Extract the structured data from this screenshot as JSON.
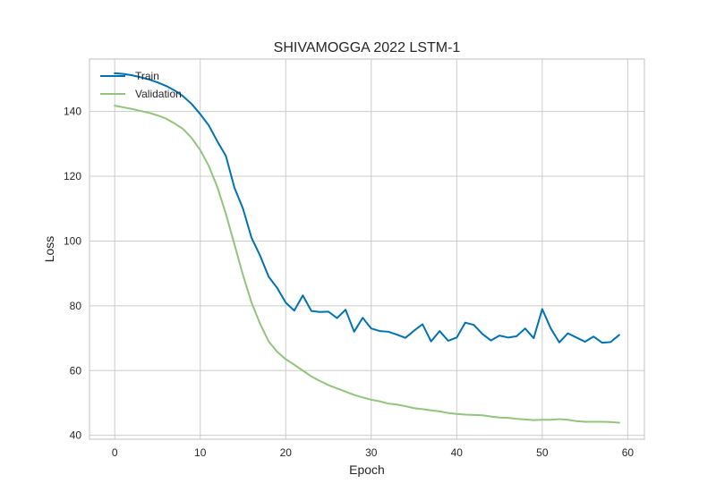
{
  "chart_data": {
    "type": "line",
    "title": "SHIVAMOGGA 2022 LSTM-1",
    "xlabel": "Epoch",
    "ylabel": "Loss",
    "xlim": [
      -2.95,
      61.95
    ],
    "ylim": [
      38.8,
      156.2
    ],
    "xticks": [
      0,
      10,
      20,
      30,
      40,
      50,
      60
    ],
    "yticks": [
      40,
      60,
      80,
      100,
      120,
      140
    ],
    "grid": true,
    "legend_position": "top-left",
    "series": [
      {
        "name": "Train",
        "color": "#0072b2",
        "x": [
          0,
          1,
          2,
          3,
          4,
          5,
          6,
          7,
          8,
          9,
          10,
          11,
          12,
          13,
          14,
          15,
          16,
          17,
          18,
          19,
          20,
          21,
          22,
          23,
          24,
          25,
          26,
          27,
          28,
          29,
          30,
          31,
          32,
          33,
          34,
          35,
          36,
          37,
          38,
          39,
          40,
          41,
          42,
          43,
          44,
          45,
          46,
          47,
          48,
          49,
          50,
          51,
          52,
          53,
          54,
          55,
          56,
          57,
          58,
          59
        ],
        "values": [
          151.8,
          151.6,
          151.2,
          150.6,
          149.9,
          149.0,
          147.9,
          146.5,
          144.7,
          142.3,
          139.2,
          135.7,
          130.8,
          126.3,
          116.5,
          110,
          101,
          95.5,
          89,
          85.5,
          81,
          78.5,
          83.2,
          78.4,
          78.1,
          78.2,
          76.2,
          78.8,
          72,
          76.3,
          73,
          72.2,
          72,
          71.1,
          70.1,
          72.3,
          74.3,
          69,
          72.2,
          69.2,
          70.2,
          74.8,
          74.1,
          71.3,
          69.3,
          70.8,
          70.2,
          70.6,
          73,
          70,
          79,
          73,
          68.7,
          71.5,
          70.2,
          68.9,
          70.5,
          68.6,
          68.8,
          71
        ]
      },
      {
        "name": "Validation",
        "color": "#93c47d",
        "x": [
          0,
          1,
          2,
          3,
          4,
          5,
          6,
          7,
          8,
          9,
          10,
          11,
          12,
          13,
          14,
          15,
          16,
          17,
          18,
          19,
          20,
          21,
          22,
          23,
          24,
          25,
          26,
          27,
          28,
          29,
          30,
          31,
          32,
          33,
          34,
          35,
          36,
          37,
          38,
          39,
          40,
          41,
          42,
          43,
          44,
          45,
          46,
          47,
          48,
          49,
          50,
          51,
          52,
          53,
          54,
          55,
          56,
          57,
          58,
          59
        ],
        "values": [
          141.8,
          141.3,
          140.8,
          140.2,
          139.6,
          138.8,
          137.8,
          136.3,
          134.6,
          131.8,
          128.1,
          123.2,
          116.7,
          108.4,
          99,
          89.5,
          81,
          74.5,
          69,
          65.8,
          63.5,
          61.8,
          60,
          58.2,
          56.8,
          55.5,
          54.5,
          53.5,
          52.5,
          51.7,
          51,
          50.5,
          49.8,
          49.5,
          49,
          48.4,
          48.1,
          47.7,
          47.4,
          46.9,
          46.6,
          46.4,
          46.3,
          46.2,
          45.8,
          45.5,
          45.4,
          45.1,
          44.9,
          44.7,
          44.8,
          44.8,
          45,
          44.8,
          44.4,
          44.2,
          44.2,
          44.2,
          44.1,
          43.9
        ]
      }
    ]
  }
}
